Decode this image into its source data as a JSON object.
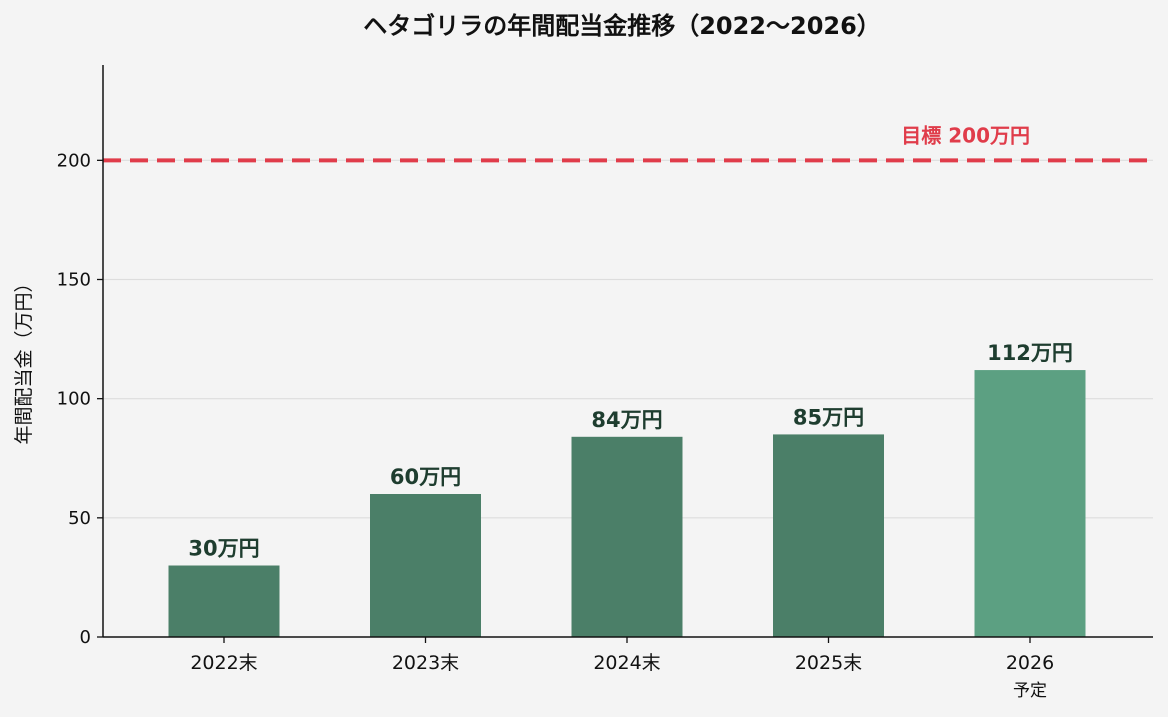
{
  "chart_data": {
    "type": "bar",
    "title": "ヘタゴリラの年間配当金推移（2022〜2026）",
    "xlabel": "",
    "ylabel": "年間配当金（万円）",
    "categories": [
      "2022末",
      "2023末",
      "2024末",
      "2025末",
      "2026\n予定"
    ],
    "values": [
      30,
      60,
      84,
      85,
      112
    ],
    "value_labels": [
      "30万円",
      "60万円",
      "84万円",
      "85万円",
      "112万円"
    ],
    "ylim": [
      0,
      240
    ],
    "yticks": [
      0,
      50,
      100,
      150,
      200
    ],
    "grid": true,
    "target": {
      "value": 200,
      "label": "目標 200万円",
      "color": "#e03c4a",
      "style": "dashed"
    },
    "colors": {
      "actual": "#4b7f68",
      "planned": "#5ca082",
      "value_label": "#1e3d2f",
      "axis": "#111111",
      "grid": "#dddddd",
      "background": "#f4f4f4"
    }
  }
}
